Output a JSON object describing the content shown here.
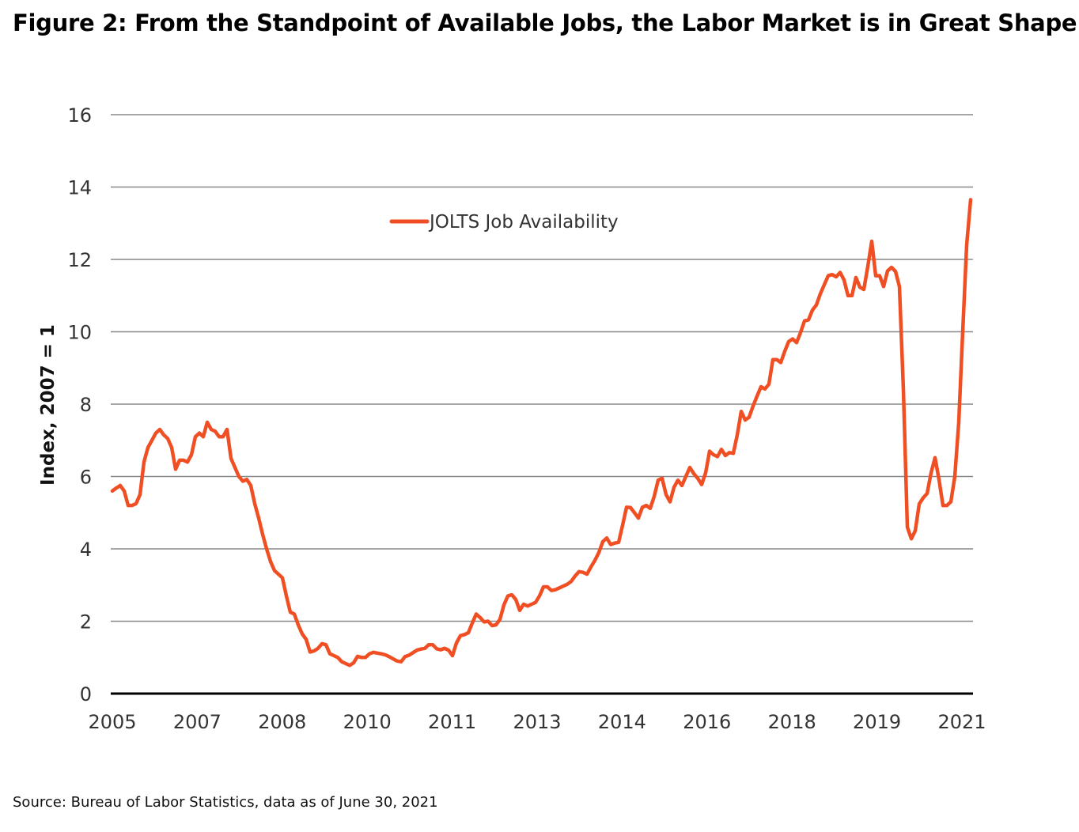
{
  "title": "Figure 2: From the Standpoint of Available Jobs, the Labor Market is in Great Shape",
  "source": "Source: Bureau of Labor Statistics, data as of June 30, 2021",
  "chart_data": {
    "type": "line",
    "title": "Figure 2: From the Standpoint of Available Jobs, the Labor Market is in Great Shape",
    "xlabel": "",
    "ylabel": "Index, 2007 = 1",
    "x_tick_labels": [
      "2005",
      "2007",
      "2008",
      "2010",
      "2011",
      "2013",
      "2014",
      "2016",
      "2018",
      "2019",
      "2021"
    ],
    "y_ticks": [
      0,
      2,
      4,
      6,
      8,
      10,
      12,
      14,
      16
    ],
    "ylim": [
      0,
      16
    ],
    "grid": "horizontal",
    "legend_position": "top-center",
    "line_color": "#f04e23",
    "series": [
      {
        "name": "JOLTS Job Availability",
        "note_x": "evenly spaced observations from 2005 to mid-2021",
        "values": [
          5.6,
          5.68,
          5.75,
          5.6,
          5.2,
          5.2,
          5.25,
          5.5,
          6.4,
          6.8,
          7.0,
          7.2,
          7.3,
          7.15,
          7.05,
          6.8,
          6.2,
          6.45,
          6.45,
          6.4,
          6.6,
          7.1,
          7.2,
          7.1,
          7.5,
          7.3,
          7.25,
          7.1,
          7.1,
          7.3,
          6.5,
          6.25,
          6.0,
          5.87,
          5.92,
          5.75,
          5.25,
          4.85,
          4.4,
          4.0,
          3.65,
          3.4,
          3.3,
          3.2,
          2.7,
          2.25,
          2.2,
          1.9,
          1.65,
          1.5,
          1.15,
          1.18,
          1.25,
          1.38,
          1.35,
          1.1,
          1.05,
          1.0,
          0.88,
          0.83,
          0.78,
          0.85,
          1.03,
          1.0,
          1.0,
          1.1,
          1.14,
          1.12,
          1.1,
          1.07,
          1.02,
          0.96,
          0.9,
          0.88,
          1.02,
          1.06,
          1.13,
          1.2,
          1.23,
          1.25,
          1.35,
          1.35,
          1.24,
          1.21,
          1.25,
          1.2,
          1.05,
          1.4,
          1.6,
          1.63,
          1.68,
          1.95,
          2.2,
          2.1,
          1.98,
          2.0,
          1.88,
          1.9,
          2.05,
          2.45,
          2.7,
          2.73,
          2.6,
          2.3,
          2.47,
          2.42,
          2.47,
          2.52,
          2.7,
          2.95,
          2.95,
          2.85,
          2.87,
          2.92,
          2.97,
          3.02,
          3.1,
          3.25,
          3.37,
          3.35,
          3.3,
          3.5,
          3.68,
          3.9,
          4.2,
          4.3,
          4.12,
          4.16,
          4.18,
          4.65,
          5.15,
          5.14,
          5.0,
          4.85,
          5.15,
          5.2,
          5.12,
          5.45,
          5.9,
          5.95,
          5.5,
          5.3,
          5.7,
          5.9,
          5.75,
          6.0,
          6.25,
          6.08,
          5.95,
          5.78,
          6.1,
          6.7,
          6.6,
          6.55,
          6.75,
          6.58,
          6.66,
          6.64,
          7.15,
          7.8,
          7.56,
          7.64,
          7.95,
          8.22,
          8.48,
          8.42,
          8.55,
          9.23,
          9.23,
          9.15,
          9.46,
          9.73,
          9.8,
          9.7,
          9.98,
          10.3,
          10.33,
          10.6,
          10.74,
          11.05,
          11.3,
          11.55,
          11.58,
          11.52,
          11.64,
          11.43,
          11.0,
          11.0,
          11.5,
          11.23,
          11.17,
          11.8,
          12.5,
          11.55,
          11.55,
          11.25,
          11.68,
          11.78,
          11.67,
          11.25,
          8.4,
          4.6,
          4.28,
          4.5,
          5.24,
          5.41,
          5.53,
          6.1,
          6.52,
          5.92,
          5.2,
          5.2,
          5.3,
          6.0,
          7.5,
          10.0,
          12.4,
          13.65
        ]
      }
    ]
  }
}
